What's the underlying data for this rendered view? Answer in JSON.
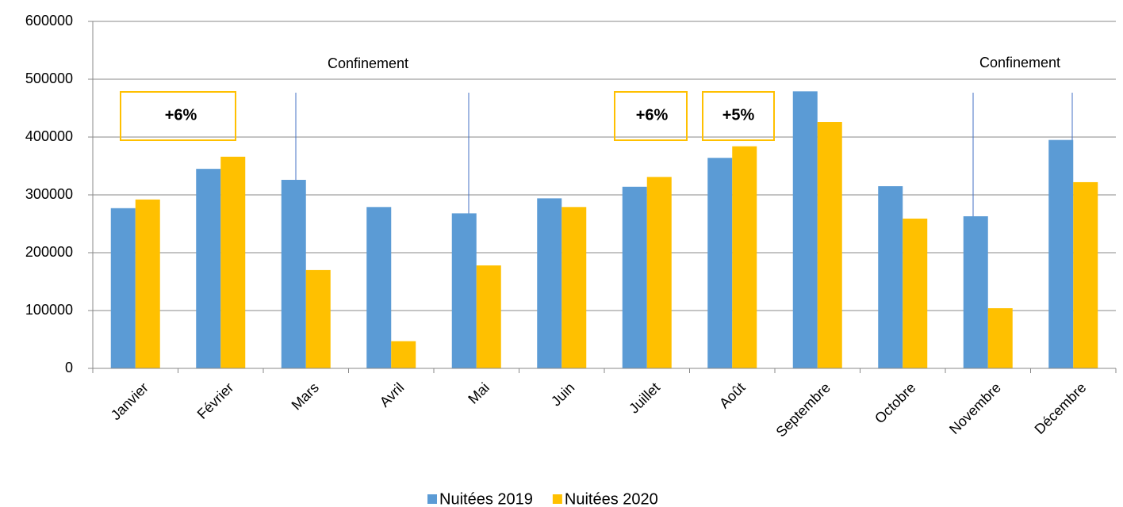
{
  "chart_data": {
    "type": "bar",
    "categories": [
      "Janvier",
      "Février",
      "Mars",
      "Avril",
      "Mai",
      "Juin",
      "Juillet",
      "Août",
      "Septembre",
      "Octobre",
      "Novembre",
      "Décembre"
    ],
    "series": [
      {
        "name": "Nuitées 2019",
        "color": "#5b9bd5",
        "values": [
          277000,
          345000,
          326000,
          279000,
          268000,
          294000,
          314000,
          364000,
          479000,
          315000,
          263000,
          395000
        ]
      },
      {
        "name": "Nuitées 2020",
        "color": "#ffc000",
        "values": [
          292000,
          366000,
          170000,
          47000,
          178000,
          279000,
          331000,
          384000,
          426000,
          259000,
          104000,
          322000
        ]
      }
    ],
    "ylim": [
      0,
      600000
    ],
    "yticks": [
      0,
      100000,
      200000,
      300000,
      400000,
      500000,
      600000
    ],
    "grid": true,
    "legend": "bottom",
    "annotations": [
      "+6%",
      "+6%",
      "+5%",
      "Confinement",
      "Confinement"
    ]
  }
}
